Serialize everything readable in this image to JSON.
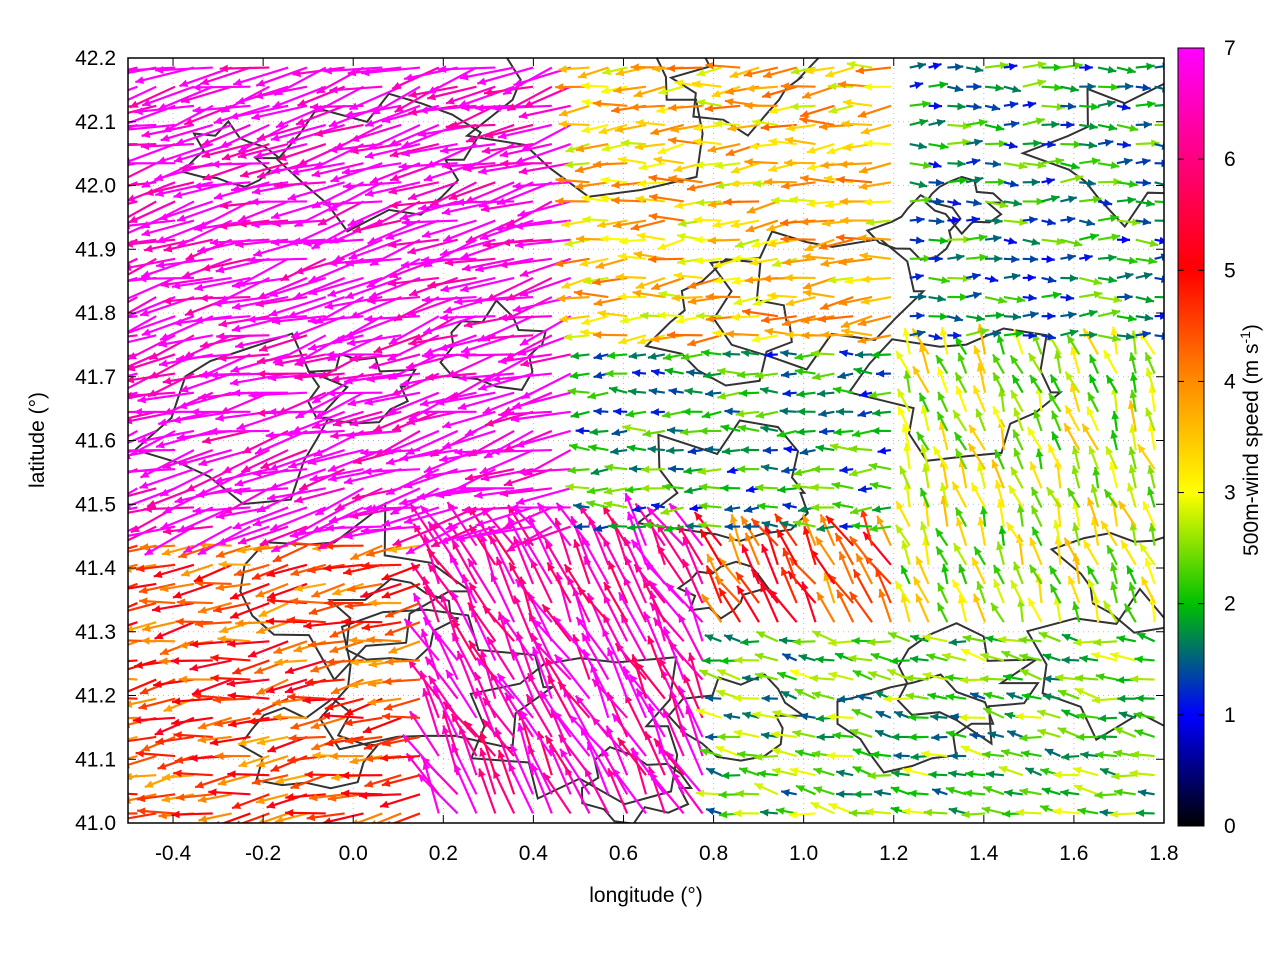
{
  "chart_data": {
    "type": "vector-field",
    "xlabel": "longitude (°)",
    "ylabel": "latitude (°)",
    "xlim": [
      -0.5,
      1.8
    ],
    "ylim": [
      41.0,
      42.2
    ],
    "xticks": [
      "-0.4",
      "-0.2",
      "0.0",
      "0.2",
      "0.4",
      "0.6",
      "0.8",
      "1.0",
      "1.2",
      "1.4",
      "1.6",
      "1.8"
    ],
    "yticks": [
      "41.0",
      "41.1",
      "41.2",
      "41.3",
      "41.4",
      "41.5",
      "41.6",
      "41.7",
      "41.8",
      "41.9",
      "42.0",
      "42.1",
      "42.2"
    ],
    "grid": true,
    "colorbar": {
      "label_main": "500m-wind speed (m s",
      "label_sup": "-1",
      "label_end": ")",
      "range": [
        0,
        7
      ],
      "ticks": [
        "0",
        "1",
        "2",
        "3",
        "4",
        "5",
        "6",
        "7"
      ],
      "stops": [
        "#000000",
        "#0000ff",
        "#00c000",
        "#ffff00",
        "#ff8c00",
        "#ff0000",
        "#ff00ff"
      ]
    },
    "contour_color": "#333333",
    "wind_regions": [
      {
        "name": "northwest",
        "lon": [
          -0.5,
          0.5
        ],
        "lat": [
          41.45,
          42.2
        ],
        "speed": 7.0,
        "direction_deg": 195
      },
      {
        "name": "southwest",
        "lon": [
          -0.5,
          0.15
        ],
        "lat": [
          41.0,
          41.45
        ],
        "speed": 4.5,
        "direction_deg": 190
      },
      {
        "name": "central-south",
        "lon": [
          0.15,
          0.8
        ],
        "lat": [
          41.0,
          41.45
        ],
        "speed": 6.5,
        "direction_deg": 120
      },
      {
        "name": "north-central",
        "lon": [
          0.5,
          1.2
        ],
        "lat": [
          41.75,
          42.2
        ],
        "speed": 3.5,
        "direction_deg": 185
      },
      {
        "name": "central",
        "lon": [
          0.5,
          1.2
        ],
        "lat": [
          41.45,
          41.75
        ],
        "speed": 1.8,
        "direction_deg": 180
      },
      {
        "name": "northeast",
        "lon": [
          1.2,
          1.8
        ],
        "lat": [
          41.75,
          42.2
        ],
        "speed": 1.8,
        "direction_deg": 0
      },
      {
        "name": "east",
        "lon": [
          1.2,
          1.8
        ],
        "lat": [
          41.3,
          41.75
        ],
        "speed": 2.8,
        "direction_deg": 110
      },
      {
        "name": "southeast",
        "lon": [
          0.8,
          1.8
        ],
        "lat": [
          41.0,
          41.3
        ],
        "speed": 2.2,
        "direction_deg": 170
      },
      {
        "name": "south-central",
        "lon": [
          0.6,
          1.2
        ],
        "lat": [
          41.25,
          41.45
        ],
        "speed": 4.5,
        "direction_deg": 120
      }
    ]
  }
}
